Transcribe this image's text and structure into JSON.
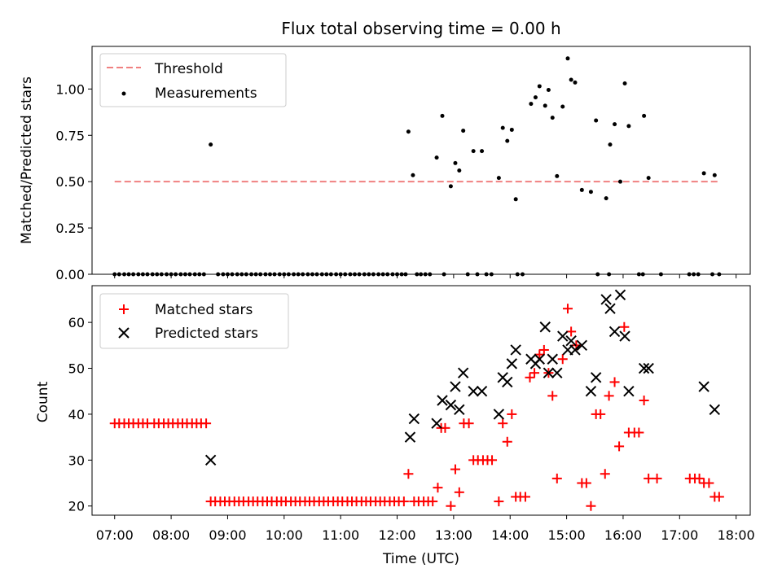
{
  "title": "Flux total observing time = 0.00 h",
  "chart_data": [
    {
      "type": "scatter",
      "panel": "top",
      "ylabel": "Matched/Predicted stars",
      "xlim": [
        6.6,
        18.25
      ],
      "ylim": [
        0,
        1.23
      ],
      "yticks": [
        0,
        0.25,
        0.5,
        0.75,
        1.0
      ],
      "ytick_labels": [
        "0.00",
        "0.25",
        "0.50",
        "0.75",
        "1.00"
      ],
      "legend": {
        "placement": "top-left",
        "entries": [
          "Threshold",
          "Measurements"
        ]
      },
      "threshold": {
        "name": "Threshold",
        "y": 0.5,
        "x_range": [
          7.0,
          17.7
        ],
        "color": "#f08080"
      },
      "measurements": {
        "name": "Measurements",
        "color": "#000000",
        "zero_x": [
          7.0,
          7.08,
          7.17,
          7.25,
          7.33,
          7.42,
          7.5,
          7.58,
          7.67,
          7.75,
          7.83,
          7.92,
          8.0,
          8.08,
          8.17,
          8.25,
          8.33,
          8.42,
          8.5,
          8.58,
          8.83,
          8.92,
          9.0,
          9.08,
          9.17,
          9.25,
          9.33,
          9.42,
          9.5,
          9.58,
          9.67,
          9.75,
          9.83,
          9.92,
          10.0,
          10.08,
          10.17,
          10.25,
          10.33,
          10.42,
          10.5,
          10.58,
          10.67,
          10.75,
          10.83,
          10.92,
          11.0,
          11.08,
          11.17,
          11.25,
          11.33,
          11.42,
          11.5,
          11.58,
          11.67,
          11.75,
          11.83,
          11.92,
          12.0,
          12.08,
          12.15,
          12.35,
          12.42,
          12.5,
          12.58,
          12.83,
          13.25,
          13.42,
          13.58,
          13.67,
          14.13,
          14.22,
          15.55,
          15.75,
          16.28,
          16.35,
          16.67,
          17.17,
          17.25,
          17.33,
          17.58,
          17.7
        ],
        "points": [
          [
            8.7,
            0.7
          ],
          [
            12.2,
            0.77
          ],
          [
            12.28,
            0.535
          ],
          [
            12.7,
            0.63
          ],
          [
            12.8,
            0.855
          ],
          [
            12.95,
            0.475
          ],
          [
            13.03,
            0.6
          ],
          [
            13.1,
            0.56
          ],
          [
            13.17,
            0.775
          ],
          [
            13.35,
            0.665
          ],
          [
            13.5,
            0.665
          ],
          [
            13.8,
            0.52
          ],
          [
            13.87,
            0.79
          ],
          [
            13.95,
            0.72
          ],
          [
            14.03,
            0.78
          ],
          [
            14.1,
            0.405
          ],
          [
            14.37,
            0.92
          ],
          [
            14.45,
            0.955
          ],
          [
            14.52,
            1.015
          ],
          [
            14.62,
            0.91
          ],
          [
            14.68,
            0.995
          ],
          [
            14.75,
            0.845
          ],
          [
            14.83,
            0.53
          ],
          [
            14.93,
            0.905
          ],
          [
            15.02,
            1.165
          ],
          [
            15.08,
            1.05
          ],
          [
            15.15,
            1.035
          ],
          [
            15.27,
            0.455
          ],
          [
            15.43,
            0.445
          ],
          [
            15.52,
            0.83
          ],
          [
            15.7,
            0.41
          ],
          [
            15.77,
            0.7
          ],
          [
            15.85,
            0.81
          ],
          [
            15.95,
            0.5
          ],
          [
            16.03,
            1.03
          ],
          [
            16.1,
            0.8
          ],
          [
            16.37,
            0.855
          ],
          [
            16.45,
            0.52
          ],
          [
            17.43,
            0.545
          ],
          [
            17.62,
            0.535
          ]
        ]
      }
    },
    {
      "type": "scatter",
      "panel": "bottom",
      "xlabel": "Time (UTC)",
      "ylabel": "Count",
      "xlim": [
        6.6,
        18.25
      ],
      "ylim": [
        18,
        68
      ],
      "yticks": [
        20,
        30,
        40,
        50,
        60
      ],
      "ytick_labels": [
        "20",
        "30",
        "40",
        "50",
        "60"
      ],
      "xticks": [
        7,
        8,
        9,
        10,
        11,
        12,
        13,
        14,
        15,
        16,
        17,
        18
      ],
      "xtick_labels": [
        "07:00",
        "08:00",
        "09:00",
        "10:00",
        "11:00",
        "12:00",
        "13:00",
        "14:00",
        "15:00",
        "16:00",
        "17:00",
        "18:00"
      ],
      "legend": {
        "placement": "top-left",
        "entries": [
          "Matched stars",
          "Predicted stars"
        ]
      },
      "series": [
        {
          "name": "Matched stars",
          "marker": "plus",
          "color": "#ff0000",
          "points": [
            [
              7.0,
              38
            ],
            [
              7.08,
              38
            ],
            [
              7.17,
              38
            ],
            [
              7.25,
              38
            ],
            [
              7.33,
              38
            ],
            [
              7.42,
              38
            ],
            [
              7.5,
              38
            ],
            [
              7.58,
              38
            ],
            [
              7.7,
              38
            ],
            [
              7.78,
              38
            ],
            [
              7.87,
              38
            ],
            [
              7.95,
              38
            ],
            [
              8.03,
              38
            ],
            [
              8.12,
              38
            ],
            [
              8.2,
              38
            ],
            [
              8.28,
              38
            ],
            [
              8.37,
              38
            ],
            [
              8.45,
              38
            ],
            [
              8.53,
              38
            ],
            [
              8.62,
              38
            ],
            [
              8.7,
              21
            ],
            [
              8.78,
              21
            ],
            [
              8.87,
              21
            ],
            [
              8.95,
              21
            ],
            [
              9.03,
              21
            ],
            [
              9.12,
              21
            ],
            [
              9.2,
              21
            ],
            [
              9.28,
              21
            ],
            [
              9.37,
              21
            ],
            [
              9.45,
              21
            ],
            [
              9.53,
              21
            ],
            [
              9.62,
              21
            ],
            [
              9.7,
              21
            ],
            [
              9.78,
              21
            ],
            [
              9.87,
              21
            ],
            [
              9.95,
              21
            ],
            [
              10.03,
              21
            ],
            [
              10.12,
              21
            ],
            [
              10.2,
              21
            ],
            [
              10.28,
              21
            ],
            [
              10.37,
              21
            ],
            [
              10.45,
              21
            ],
            [
              10.53,
              21
            ],
            [
              10.62,
              21
            ],
            [
              10.7,
              21
            ],
            [
              10.78,
              21
            ],
            [
              10.87,
              21
            ],
            [
              10.95,
              21
            ],
            [
              11.03,
              21
            ],
            [
              11.12,
              21
            ],
            [
              11.2,
              21
            ],
            [
              11.28,
              21
            ],
            [
              11.37,
              21
            ],
            [
              11.45,
              21
            ],
            [
              11.53,
              21
            ],
            [
              11.62,
              21
            ],
            [
              11.7,
              21
            ],
            [
              11.78,
              21
            ],
            [
              11.87,
              21
            ],
            [
              11.95,
              21
            ],
            [
              12.03,
              21
            ],
            [
              12.12,
              21
            ],
            [
              12.2,
              27
            ],
            [
              12.3,
              21
            ],
            [
              12.38,
              21
            ],
            [
              12.47,
              21
            ],
            [
              12.55,
              21
            ],
            [
              12.63,
              21
            ],
            [
              12.72,
              24
            ],
            [
              12.78,
              37
            ],
            [
              12.85,
              37
            ],
            [
              12.95,
              20
            ],
            [
              13.03,
              28
            ],
            [
              13.1,
              23
            ],
            [
              13.18,
              38
            ],
            [
              13.27,
              38
            ],
            [
              13.35,
              30
            ],
            [
              13.43,
              30
            ],
            [
              13.52,
              30
            ],
            [
              13.6,
              30
            ],
            [
              13.68,
              30
            ],
            [
              13.8,
              21
            ],
            [
              13.87,
              38
            ],
            [
              13.95,
              34
            ],
            [
              14.03,
              40
            ],
            [
              14.1,
              22
            ],
            [
              14.18,
              22
            ],
            [
              14.27,
              22
            ],
            [
              14.35,
              48
            ],
            [
              14.43,
              49
            ],
            [
              14.52,
              53
            ],
            [
              14.6,
              54
            ],
            [
              14.68,
              49
            ],
            [
              14.75,
              44
            ],
            [
              14.83,
              26
            ],
            [
              14.93,
              52
            ],
            [
              15.02,
              63
            ],
            [
              15.08,
              58
            ],
            [
              15.17,
              55
            ],
            [
              15.27,
              25
            ],
            [
              15.35,
              25
            ],
            [
              15.43,
              20
            ],
            [
              15.52,
              40
            ],
            [
              15.6,
              40
            ],
            [
              15.68,
              27
            ],
            [
              15.75,
              44
            ],
            [
              15.85,
              47
            ],
            [
              15.93,
              33
            ],
            [
              16.02,
              59
            ],
            [
              16.1,
              36
            ],
            [
              16.2,
              36
            ],
            [
              16.28,
              36
            ],
            [
              16.37,
              43
            ],
            [
              16.45,
              26
            ],
            [
              16.6,
              26
            ],
            [
              17.18,
              26
            ],
            [
              17.27,
              26
            ],
            [
              17.35,
              26
            ],
            [
              17.43,
              25
            ],
            [
              17.52,
              25
            ],
            [
              17.62,
              22
            ],
            [
              17.7,
              22
            ]
          ]
        },
        {
          "name": "Predicted stars",
          "marker": "x",
          "color": "#000000",
          "points": [
            [
              8.7,
              30
            ],
            [
              12.23,
              35
            ],
            [
              12.3,
              39
            ],
            [
              12.7,
              38
            ],
            [
              12.8,
              43
            ],
            [
              12.95,
              42
            ],
            [
              13.03,
              46
            ],
            [
              13.1,
              41
            ],
            [
              13.17,
              49
            ],
            [
              13.35,
              45
            ],
            [
              13.5,
              45
            ],
            [
              13.8,
              40
            ],
            [
              13.87,
              48
            ],
            [
              13.95,
              47
            ],
            [
              14.03,
              51
            ],
            [
              14.1,
              54
            ],
            [
              14.37,
              52
            ],
            [
              14.45,
              51
            ],
            [
              14.52,
              52
            ],
            [
              14.62,
              59
            ],
            [
              14.68,
              49
            ],
            [
              14.75,
              52
            ],
            [
              14.83,
              49
            ],
            [
              14.93,
              57
            ],
            [
              15.02,
              54
            ],
            [
              15.08,
              56
            ],
            [
              15.15,
              54
            ],
            [
              15.27,
              55
            ],
            [
              15.43,
              45
            ],
            [
              15.52,
              48
            ],
            [
              15.7,
              65
            ],
            [
              15.77,
              63
            ],
            [
              15.85,
              58
            ],
            [
              15.95,
              66
            ],
            [
              16.03,
              57
            ],
            [
              16.1,
              45
            ],
            [
              16.37,
              50
            ],
            [
              16.45,
              50
            ],
            [
              17.43,
              46
            ],
            [
              17.62,
              41
            ]
          ]
        }
      ]
    }
  ]
}
